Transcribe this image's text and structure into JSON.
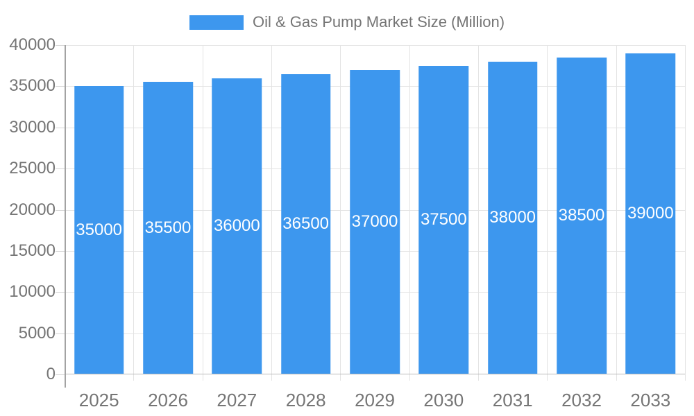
{
  "legend": {
    "label": "Oil & Gas Pump Market Size (Million)"
  },
  "chart_data": {
    "type": "bar",
    "title": "Oil & Gas Pump Market Size (Million)",
    "categories": [
      "2025",
      "2026",
      "2027",
      "2028",
      "2029",
      "2030",
      "2031",
      "2032",
      "2033"
    ],
    "values": [
      35000,
      35500,
      36000,
      36500,
      37000,
      37500,
      38000,
      38500,
      39000
    ],
    "series": [
      {
        "name": "Oil & Gas Pump Market Size (Million)",
        "values": [
          35000,
          35500,
          36000,
          36500,
          37000,
          37500,
          38000,
          38500,
          39000
        ]
      }
    ],
    "xlabel": "",
    "ylabel": "",
    "ylim": [
      0,
      40000
    ],
    "yticks": [
      0,
      5000,
      10000,
      15000,
      20000,
      25000,
      30000,
      35000,
      40000
    ],
    "grid": true,
    "legend_position": "top",
    "value_labels": "inside-center",
    "colors": {
      "bar": "#3D97EE",
      "bar_label": "#ffffff",
      "axis_text": "#757575",
      "grid_line": "#e3e3e3",
      "y_axis_line": "#a3a3a3",
      "x_axis_line": "#b9b9b9",
      "tick_line": "#d4d4d4",
      "background": "#ffffff"
    }
  }
}
